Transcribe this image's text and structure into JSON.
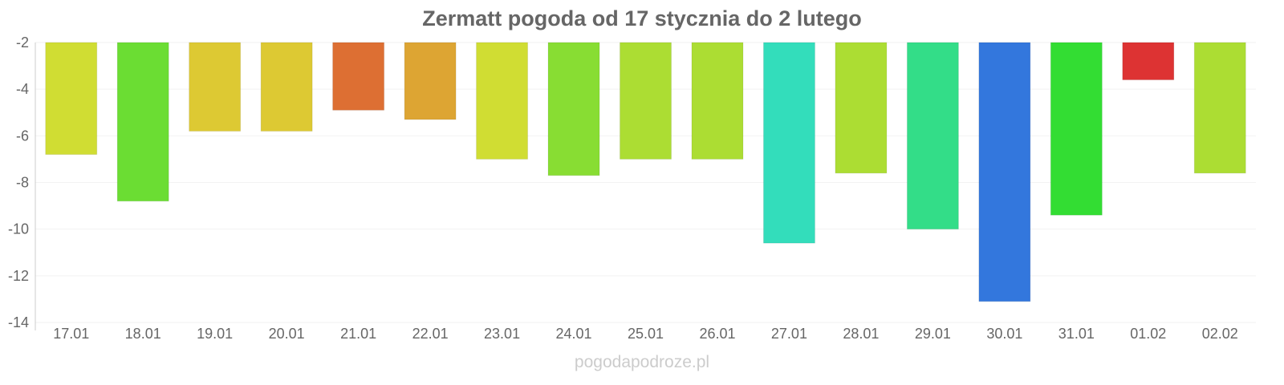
{
  "chart_data": {
    "type": "bar",
    "title": "Zermatt pogoda od 17 stycznia do 2 lutego",
    "categories": [
      "17.01",
      "18.01",
      "19.01",
      "20.01",
      "21.01",
      "22.01",
      "23.01",
      "24.01",
      "25.01",
      "26.01",
      "27.01",
      "28.01",
      "29.01",
      "30.01",
      "31.01",
      "01.02",
      "02.02"
    ],
    "values": [
      -6.8,
      -8.8,
      -5.8,
      -5.8,
      -4.9,
      -5.3,
      -7.0,
      -7.7,
      -7.0,
      -7.0,
      -10.6,
      -7.6,
      -10.0,
      -13.1,
      -9.4,
      -3.6,
      -7.6
    ],
    "colors": [
      "#d0dd33",
      "#6bdd33",
      "#ddc933",
      "#ddc933",
      "#dd6f33",
      "#dda533",
      "#d0dd33",
      "#88dd33",
      "#acdd33",
      "#acdd33",
      "#33ddbb",
      "#acdd33",
      "#33dd88",
      "#3377dd",
      "#33dd33",
      "#dd3333",
      "#acdd33"
    ],
    "ylim": [
      -14,
      -2
    ],
    "yticks": [
      "-2",
      "-4",
      "-6",
      "-8",
      "-10",
      "-12",
      "-14"
    ],
    "xlabel": "",
    "ylabel": "",
    "grid": true,
    "legend": "none"
  },
  "credit": "pogodapodroze.pl"
}
